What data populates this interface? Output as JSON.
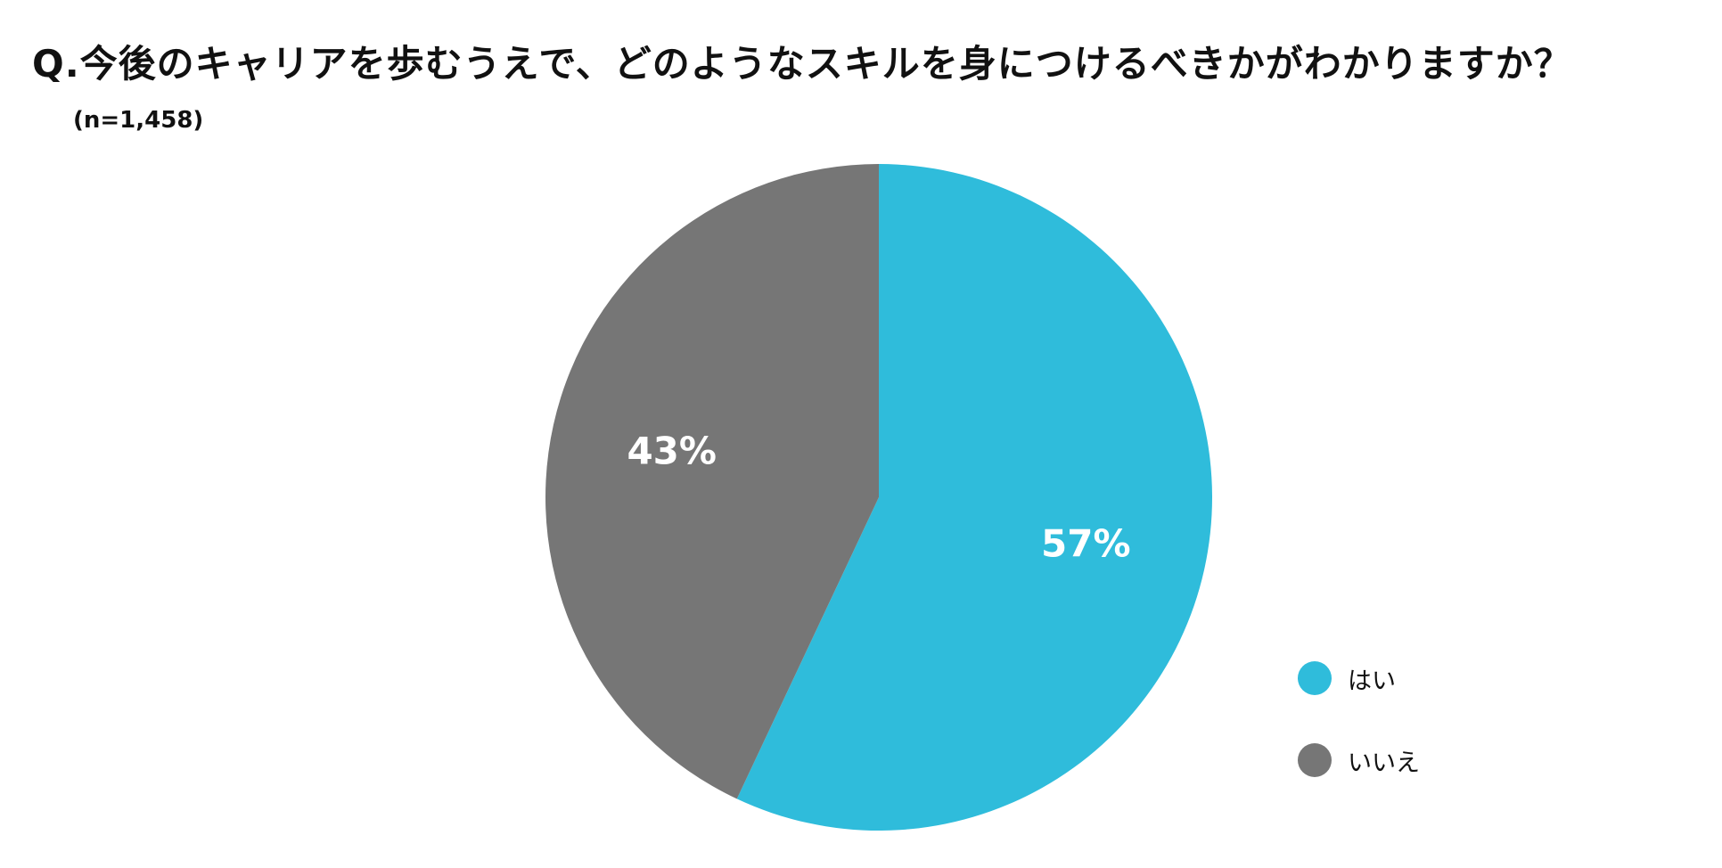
{
  "title": "Q.今後のキャリアを歩むうえで、どのようなスキルを身につけるべきかがわかりますか？",
  "subtitle": "(n=1,458)",
  "chart_data": {
    "type": "pie",
    "title": "Q.今後のキャリアを歩むうえで、どのようなスキルを身につけるべきかがわかりますか？",
    "subtitle": "(n=1,458)",
    "categories": [
      "はい",
      "いいえ"
    ],
    "values": [
      57,
      43
    ],
    "labels": [
      "57%",
      "43%"
    ],
    "colors": [
      "#2fbcdb",
      "#767676"
    ],
    "unit": "%",
    "legend_position": "bottom-right",
    "start": "12 o'clock",
    "direction": "clockwise"
  }
}
